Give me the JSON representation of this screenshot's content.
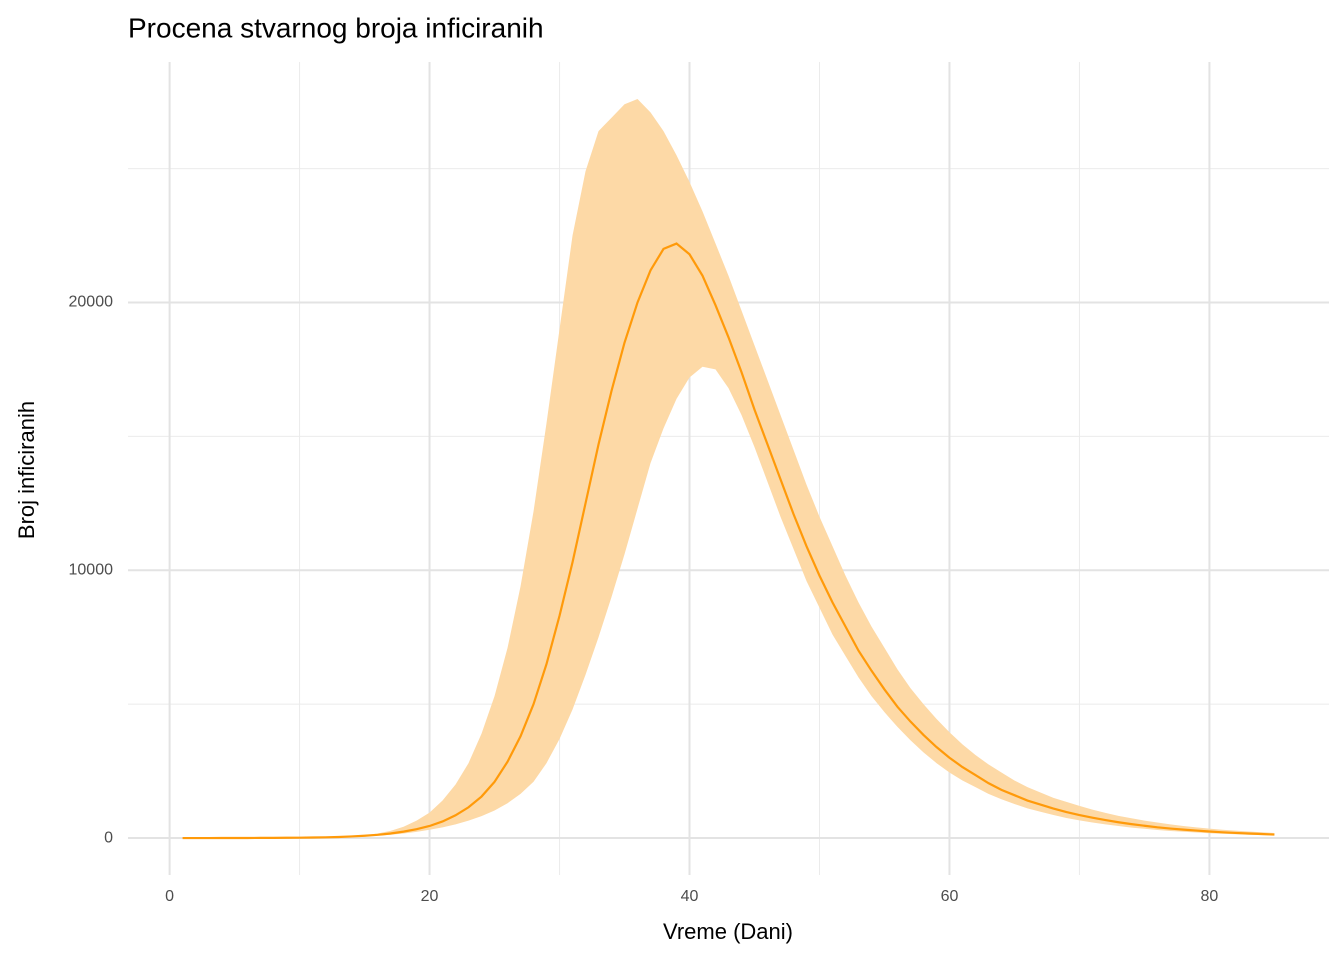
{
  "chart_data": {
    "type": "ribbon-line",
    "title": "Procena stvarnog broja inficiranih",
    "x_label": "Vreme (Dani)",
    "y_label": "Broj inficiranih",
    "x": [
      1,
      2,
      3,
      4,
      5,
      6,
      7,
      8,
      9,
      10,
      11,
      12,
      13,
      14,
      15,
      16,
      17,
      18,
      19,
      20,
      21,
      22,
      23,
      24,
      25,
      26,
      27,
      28,
      29,
      30,
      31,
      32,
      33,
      34,
      35,
      36,
      37,
      38,
      39,
      40,
      41,
      42,
      43,
      44,
      45,
      46,
      47,
      48,
      49,
      50,
      51,
      52,
      53,
      54,
      55,
      56,
      57,
      58,
      59,
      60,
      61,
      62,
      63,
      64,
      65,
      66,
      67,
      68,
      69,
      70,
      71,
      72,
      73,
      74,
      75,
      76,
      77,
      78,
      79,
      80,
      81,
      82,
      83,
      84,
      85
    ],
    "line": {
      "color": "#ff9a0a",
      "values": [
        0,
        0,
        0,
        1,
        2,
        3,
        5,
        7,
        10,
        14,
        20,
        28,
        40,
        60,
        85,
        120,
        170,
        240,
        330,
        450,
        620,
        850,
        1150,
        1550,
        2100,
        2850,
        3800,
        5000,
        6500,
        8300,
        10300,
        12500,
        14700,
        16700,
        18500,
        20000,
        21200,
        22000,
        22200,
        21800,
        21000,
        19900,
        18700,
        17400,
        16000,
        14700,
        13400,
        12100,
        10900,
        9800,
        8800,
        7900,
        7000,
        6250,
        5550,
        4900,
        4350,
        3850,
        3400,
        3000,
        2650,
        2350,
        2050,
        1800,
        1600,
        1400,
        1250,
        1100,
        970,
        860,
        760,
        670,
        590,
        520,
        460,
        400,
        355,
        315,
        280,
        245,
        215,
        190,
        170,
        150,
        130
      ]
    },
    "band": {
      "color": "#fdd9a6",
      "upper": [
        0,
        0,
        1,
        2,
        3,
        4,
        7,
        10,
        14,
        20,
        28,
        40,
        55,
        75,
        100,
        170,
        270,
        420,
        650,
        950,
        1400,
        2000,
        2800,
        3900,
        5300,
        7100,
        9400,
        12200,
        15500,
        19000,
        22500,
        24900,
        26400,
        26900,
        27400,
        27600,
        27100,
        26400,
        25500,
        24500,
        23400,
        22200,
        21000,
        19700,
        18400,
        17100,
        15800,
        14500,
        13200,
        12000,
        10900,
        9800,
        8800,
        7900,
        7100,
        6300,
        5600,
        5000,
        4450,
        3950,
        3500,
        3100,
        2750,
        2450,
        2150,
        1900,
        1700,
        1500,
        1350,
        1200,
        1060,
        940,
        830,
        740,
        650,
        580,
        510,
        450,
        400,
        350,
        310,
        275,
        245,
        215,
        190
      ],
      "lower": [
        0,
        0,
        0,
        1,
        1,
        2,
        3,
        5,
        7,
        10,
        14,
        20,
        30,
        45,
        65,
        90,
        125,
        170,
        230,
        310,
        400,
        510,
        650,
        820,
        1030,
        1300,
        1650,
        2100,
        2800,
        3700,
        4800,
        6100,
        7500,
        9000,
        10600,
        12300,
        14000,
        15300,
        16400,
        17200,
        17600,
        17500,
        16800,
        15800,
        14600,
        13300,
        12000,
        10800,
        9600,
        8600,
        7600,
        6800,
        6000,
        5300,
        4700,
        4150,
        3650,
        3200,
        2800,
        2450,
        2150,
        1900,
        1650,
        1450,
        1270,
        1110,
        980,
        860,
        750,
        660,
        580,
        510,
        450,
        390,
        345,
        300,
        265,
        235,
        205,
        180,
        160,
        140,
        125,
        110,
        95
      ]
    },
    "xlim": [
      -3.2,
      89.2
    ],
    "ylim": [
      -1380,
      28980
    ],
    "xticks": [
      0,
      20,
      40,
      60,
      80
    ],
    "yticks": [
      0,
      10000,
      20000
    ],
    "x_minor_grid": [
      10,
      30,
      50,
      70
    ],
    "y_minor_grid": [
      5000,
      15000,
      25000
    ],
    "grid": true
  }
}
